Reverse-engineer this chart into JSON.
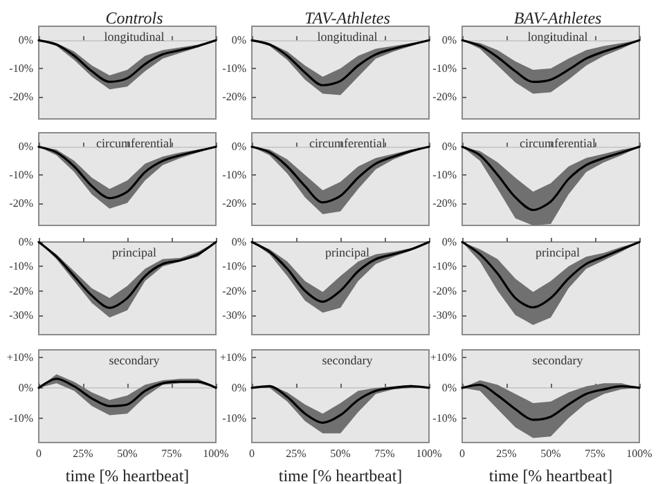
{
  "chart_data": [
    {
      "type": "line",
      "title": "Controls",
      "subtitle": "longitudinal",
      "x": [
        0,
        10,
        20,
        30,
        40,
        50,
        60,
        70,
        80,
        90,
        100
      ],
      "xlim": [
        0,
        100
      ],
      "ylim": [
        -28,
        5
      ],
      "xticks": [
        0,
        25,
        50,
        75,
        100
      ],
      "yticks": [
        {
          "value": -20,
          "label": "-20%"
        },
        {
          "value": -10,
          "label": "-10%"
        },
        {
          "value": 0,
          "label": "0%"
        }
      ],
      "ref_lines": [
        {
          "axis": "y",
          "value": 0
        }
      ],
      "tick_labels": "y",
      "series": [
        {
          "color": "#000000",
          "values": [
            0,
            -1.5,
            -5.5,
            -11,
            -14.8,
            -13.5,
            -8.5,
            -5,
            -3.5,
            -2,
            0
          ],
          "lower": [
            0,
            -2,
            -7,
            -13,
            -17.5,
            -16.5,
            -11,
            -6.5,
            -4.5,
            -2.5,
            0
          ],
          "upper": [
            0,
            -1,
            -4,
            -9,
            -12.5,
            -10.5,
            -5.5,
            -3.5,
            -2.5,
            -1.5,
            0
          ]
        }
      ]
    },
    {
      "type": "line",
      "title": "TAV-Athletes",
      "subtitle": "longitudinal",
      "x": [
        0,
        10,
        20,
        30,
        40,
        50,
        60,
        70,
        80,
        90,
        100
      ],
      "xlim": [
        0,
        100
      ],
      "ylim": [
        -28,
        5
      ],
      "xticks": [
        0,
        25,
        50,
        75,
        100
      ],
      "yticks": [
        {
          "value": -20,
          "label": "-20%"
        },
        {
          "value": -10,
          "label": "-10%"
        },
        {
          "value": 0,
          "label": "0%"
        }
      ],
      "ref_lines": [
        {
          "axis": "y",
          "value": 0
        }
      ],
      "tick_labels": "y",
      "series": [
        {
          "color": "#000000",
          "values": [
            0,
            -1.5,
            -5.5,
            -11.5,
            -16,
            -14.5,
            -9,
            -5,
            -3,
            -1.5,
            0
          ],
          "lower": [
            0,
            -2,
            -7,
            -14,
            -19,
            -19.5,
            -13,
            -6.5,
            -4,
            -2,
            0
          ],
          "upper": [
            0,
            -1,
            -4,
            -9,
            -13,
            -10,
            -5.5,
            -3,
            -2,
            -1,
            0
          ]
        }
      ]
    },
    {
      "type": "line",
      "title": "BAV-Athletes",
      "subtitle": "longitudinal",
      "x": [
        0,
        10,
        20,
        30,
        40,
        50,
        60,
        70,
        80,
        90,
        100
      ],
      "xlim": [
        0,
        100
      ],
      "ylim": [
        -28,
        5
      ],
      "xticks": [
        0,
        25,
        50,
        75,
        100
      ],
      "yticks": [
        {
          "value": -20,
          "label": "-20%"
        },
        {
          "value": -10,
          "label": "-10%"
        },
        {
          "value": 0,
          "label": "0%"
        }
      ],
      "ref_lines": [
        {
          "axis": "y",
          "value": 0
        }
      ],
      "tick_labels": "y",
      "series": [
        {
          "color": "#000000",
          "values": [
            0,
            -2,
            -6,
            -11,
            -14.8,
            -14,
            -10.5,
            -6.5,
            -4,
            -2,
            0
          ],
          "lower": [
            0,
            -3,
            -9,
            -15,
            -19,
            -18.5,
            -14,
            -9,
            -5.5,
            -3,
            0
          ],
          "upper": [
            0,
            -1,
            -3.5,
            -7.5,
            -10.5,
            -10,
            -6.5,
            -3.5,
            -2,
            -1,
            0
          ]
        }
      ]
    },
    {
      "type": "line",
      "subtitle": "circumferential",
      "x": [
        0,
        10,
        20,
        30,
        40,
        50,
        60,
        70,
        80,
        90,
        100
      ],
      "xlim": [
        0,
        100
      ],
      "ylim": [
        -28,
        5
      ],
      "xticks": [
        0,
        25,
        50,
        75,
        100
      ],
      "yticks": [
        {
          "value": -20,
          "label": "-20%"
        },
        {
          "value": -10,
          "label": "-10%"
        },
        {
          "value": 0,
          "label": "0%"
        }
      ],
      "ref_lines": [
        {
          "axis": "y",
          "value": 0
        }
      ],
      "tick_labels": "y",
      "series": [
        {
          "color": "#000000",
          "values": [
            0,
            -2,
            -7,
            -14,
            -18.3,
            -16,
            -9,
            -5,
            -3,
            -1.5,
            0
          ],
          "lower": [
            0,
            -3,
            -9,
            -17,
            -22,
            -20,
            -12,
            -6.5,
            -4,
            -2,
            0
          ],
          "upper": [
            0,
            -1,
            -5,
            -11,
            -15,
            -12,
            -6,
            -3.5,
            -2,
            -1,
            0
          ]
        }
      ]
    },
    {
      "type": "line",
      "subtitle": "circumferential",
      "x": [
        0,
        10,
        20,
        30,
        40,
        50,
        60,
        70,
        80,
        90,
        100
      ],
      "xlim": [
        0,
        100
      ],
      "ylim": [
        -28,
        5
      ],
      "xticks": [
        0,
        25,
        50,
        75,
        100
      ],
      "yticks": [
        {
          "value": -20,
          "label": "-20%"
        },
        {
          "value": -10,
          "label": "-10%"
        },
        {
          "value": 0,
          "label": "0%"
        }
      ],
      "ref_lines": [
        {
          "axis": "y",
          "value": 0
        }
      ],
      "tick_labels": "y",
      "series": [
        {
          "color": "#000000",
          "values": [
            0,
            -2,
            -7,
            -14,
            -19.8,
            -17.5,
            -11,
            -6,
            -3.5,
            -1.5,
            0
          ],
          "lower": [
            0,
            -3,
            -9.5,
            -18,
            -24,
            -23,
            -15,
            -8,
            -4.5,
            -2,
            0
          ],
          "upper": [
            0,
            -1,
            -4.5,
            -10,
            -15.5,
            -12.5,
            -7,
            -4,
            -2.5,
            -1,
            0
          ]
        }
      ]
    },
    {
      "type": "line",
      "subtitle": "circumferential",
      "x": [
        0,
        10,
        20,
        30,
        40,
        50,
        60,
        70,
        80,
        90,
        100
      ],
      "xlim": [
        0,
        100
      ],
      "ylim": [
        -28,
        5
      ],
      "xticks": [
        0,
        25,
        50,
        75,
        100
      ],
      "yticks": [
        {
          "value": -20,
          "label": "-20%"
        },
        {
          "value": -10,
          "label": "-10%"
        },
        {
          "value": 0,
          "label": "0%"
        }
      ],
      "ref_lines": [
        {
          "axis": "y",
          "value": 0
        }
      ],
      "tick_labels": "y",
      "series": [
        {
          "color": "#000000",
          "values": [
            0,
            -3,
            -10,
            -18,
            -22.5,
            -19.5,
            -11.5,
            -6.5,
            -4,
            -2,
            0
          ],
          "lower": [
            0,
            -5,
            -15,
            -25.5,
            -28,
            -27.5,
            -17,
            -9,
            -5.5,
            -3,
            0
          ],
          "upper": [
            0,
            -1.5,
            -5.5,
            -11,
            -16,
            -13,
            -7,
            -4,
            -2.5,
            -1,
            0
          ]
        }
      ]
    },
    {
      "type": "line",
      "subtitle": "principal",
      "x": [
        0,
        10,
        20,
        30,
        40,
        50,
        60,
        70,
        80,
        90,
        100
      ],
      "xlim": [
        0,
        100
      ],
      "ylim": [
        -38,
        0
      ],
      "xticks": [
        0,
        25,
        50,
        75,
        100
      ],
      "yticks": [
        {
          "value": -30,
          "label": "-30%"
        },
        {
          "value": -20,
          "label": "-20%"
        },
        {
          "value": -10,
          "label": "-10%"
        },
        {
          "value": 0,
          "label": "0%"
        }
      ],
      "tick_labels": "y",
      "series": [
        {
          "color": "#000000",
          "values": [
            0,
            -6,
            -14,
            -22,
            -27,
            -23,
            -14,
            -9,
            -7.5,
            -5,
            0
          ],
          "lower": [
            0,
            -7,
            -16,
            -25,
            -31,
            -28,
            -16,
            -10,
            -8,
            -6,
            0
          ],
          "upper": [
            0,
            -5,
            -12,
            -19,
            -23,
            -18,
            -11,
            -7,
            -6.5,
            -4,
            0
          ]
        }
      ]
    },
    {
      "type": "line",
      "subtitle": "principal",
      "x": [
        0,
        10,
        20,
        30,
        40,
        50,
        60,
        70,
        80,
        90,
        100
      ],
      "xlim": [
        0,
        100
      ],
      "ylim": [
        -38,
        0
      ],
      "xticks": [
        0,
        25,
        50,
        75,
        100
      ],
      "yticks": [
        {
          "value": -30,
          "label": "-30%"
        },
        {
          "value": -20,
          "label": "-20%"
        },
        {
          "value": -10,
          "label": "-10%"
        },
        {
          "value": 0,
          "label": "0%"
        }
      ],
      "tick_labels": "y",
      "series": [
        {
          "color": "#000000",
          "values": [
            0,
            -4,
            -11,
            -20,
            -24.5,
            -20,
            -12,
            -7,
            -5,
            -3,
            0
          ],
          "lower": [
            0,
            -5,
            -14,
            -24,
            -29,
            -27,
            -16,
            -9,
            -6,
            -3.5,
            0
          ],
          "upper": [
            0,
            -3,
            -8,
            -16,
            -20.5,
            -14,
            -8,
            -5,
            -4,
            -2.5,
            0
          ]
        }
      ]
    },
    {
      "type": "line",
      "subtitle": "principal",
      "x": [
        0,
        10,
        20,
        30,
        40,
        50,
        60,
        70,
        80,
        90,
        100
      ],
      "xlim": [
        0,
        100
      ],
      "ylim": [
        -38,
        0
      ],
      "xticks": [
        0,
        25,
        50,
        75,
        100
      ],
      "yticks": [
        {
          "value": -30,
          "label": "-30%"
        },
        {
          "value": -20,
          "label": "-20%"
        },
        {
          "value": -10,
          "label": "-10%"
        },
        {
          "value": 0,
          "label": "0%"
        }
      ],
      "tick_labels": "y",
      "series": [
        {
          "color": "#000000",
          "values": [
            0,
            -5,
            -13,
            -23,
            -26.8,
            -23,
            -15,
            -9,
            -6,
            -3,
            0
          ],
          "lower": [
            0,
            -8,
            -20,
            -30,
            -34,
            -31,
            -19,
            -11,
            -7.5,
            -4,
            0
          ],
          "upper": [
            0,
            -3,
            -7,
            -15,
            -20.5,
            -16,
            -10,
            -6,
            -4.5,
            -2,
            0
          ]
        }
      ]
    },
    {
      "type": "line",
      "subtitle": "secondary",
      "xlabel": "time [% heartbeat]",
      "x": [
        0,
        10,
        20,
        30,
        40,
        50,
        60,
        70,
        80,
        90,
        100
      ],
      "xlim": [
        0,
        100
      ],
      "ylim": [
        -18,
        12.5
      ],
      "xticks": [
        {
          "value": 0,
          "label": "0"
        },
        {
          "value": 25,
          "label": "25%"
        },
        {
          "value": 50,
          "label": "50%"
        },
        {
          "value": 75,
          "label": "75%"
        },
        {
          "value": 100,
          "label": "100%"
        }
      ],
      "yticks": [
        {
          "value": -10,
          "label": "-10%"
        },
        {
          "value": 0,
          "label": "0%"
        },
        {
          "value": 10,
          "label": "+10%"
        }
      ],
      "ref_lines": [
        {
          "axis": "y",
          "value": 0
        }
      ],
      "series": [
        {
          "color": "#000000",
          "values": [
            0,
            3,
            0.5,
            -3.5,
            -6,
            -5.5,
            -1,
            1.5,
            2,
            2,
            0
          ],
          "lower": [
            0,
            1.5,
            -1,
            -6,
            -9,
            -8.5,
            -3,
            1,
            1.5,
            1.5,
            0
          ],
          "upper": [
            0,
            4.5,
            2,
            -1.5,
            -4,
            -2.5,
            1,
            2.5,
            3,
            3,
            0
          ]
        }
      ]
    },
    {
      "type": "line",
      "subtitle": "secondary",
      "xlabel": "time [% heartbeat]",
      "x": [
        0,
        10,
        20,
        30,
        40,
        50,
        60,
        70,
        80,
        90,
        100
      ],
      "xlim": [
        0,
        100
      ],
      "ylim": [
        -18,
        12.5
      ],
      "xticks": [
        {
          "value": 0,
          "label": "0"
        },
        {
          "value": 25,
          "label": "25%"
        },
        {
          "value": 50,
          "label": "50%"
        },
        {
          "value": 75,
          "label": "75%"
        },
        {
          "value": 100,
          "label": "100%"
        }
      ],
      "yticks": [
        {
          "value": -10,
          "label": "-10%"
        },
        {
          "value": 0,
          "label": "0%"
        },
        {
          "value": 10,
          "label": "+10%"
        }
      ],
      "ref_lines": [
        {
          "axis": "y",
          "value": 0
        }
      ],
      "series": [
        {
          "color": "#000000",
          "values": [
            0,
            0.5,
            -3,
            -8.5,
            -11.5,
            -9,
            -4,
            -1,
            0,
            0.5,
            0
          ],
          "lower": [
            0,
            0,
            -4.5,
            -11,
            -15,
            -15,
            -8,
            -2,
            -0.5,
            0,
            0
          ],
          "upper": [
            0,
            1,
            -1.5,
            -5.5,
            -8.5,
            -5,
            -1,
            0,
            0.5,
            1,
            0
          ]
        }
      ]
    },
    {
      "type": "line",
      "subtitle": "secondary",
      "xlabel": "time [% heartbeat]",
      "x": [
        0,
        10,
        20,
        30,
        40,
        50,
        60,
        70,
        80,
        90,
        100
      ],
      "xlim": [
        0,
        100
      ],
      "ylim": [
        -18,
        12.5
      ],
      "xticks": [
        {
          "value": 0,
          "label": "0"
        },
        {
          "value": 25,
          "label": "25%"
        },
        {
          "value": 50,
          "label": "50%"
        },
        {
          "value": 75,
          "label": "75%"
        },
        {
          "value": 100,
          "label": "100%"
        }
      ],
      "yticks": [
        {
          "value": -10,
          "label": "-10%"
        },
        {
          "value": 0,
          "label": "0%"
        },
        {
          "value": 10,
          "label": "+10%"
        }
      ],
      "ref_lines": [
        {
          "axis": "y",
          "value": 0
        }
      ],
      "series": [
        {
          "color": "#000000",
          "values": [
            0,
            1,
            -2.5,
            -7,
            -10.5,
            -9.5,
            -5.5,
            -2,
            -0.5,
            0.5,
            0
          ],
          "lower": [
            0,
            -1,
            -7,
            -13,
            -16.5,
            -16,
            -10,
            -5,
            -2,
            -0.5,
            0
          ],
          "upper": [
            0,
            2.5,
            1,
            -2,
            -5,
            -4.5,
            -1.5,
            0.5,
            1.5,
            1.5,
            0
          ]
        }
      ]
    }
  ]
}
